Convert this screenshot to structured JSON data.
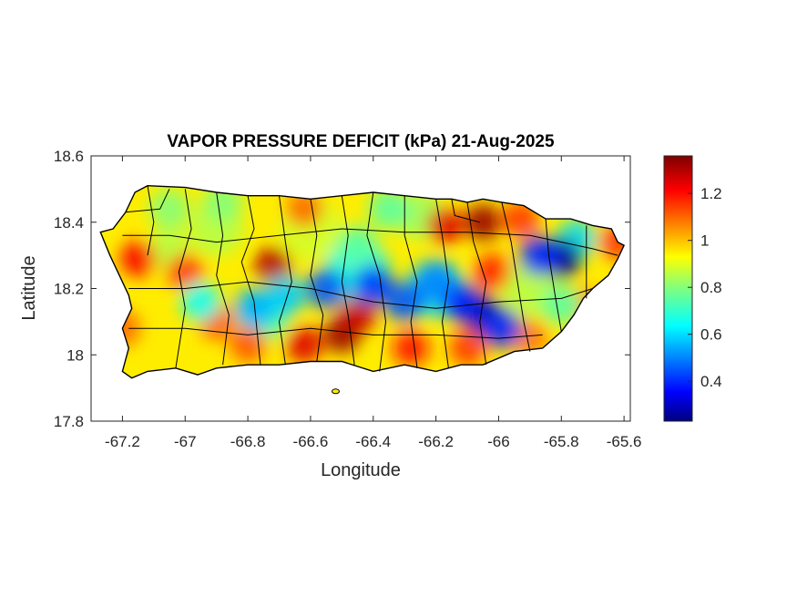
{
  "chart_data": {
    "type": "heatmap",
    "title": "VAPOR PRESSURE DEFICIT (kPa) 21-Aug-2025",
    "xlabel": "Longitude",
    "ylabel": "Latitude",
    "xlim": [
      -67.3,
      -65.58
    ],
    "ylim": [
      17.8,
      18.6
    ],
    "xticks": [
      -67.2,
      -67,
      -66.8,
      -66.6,
      -66.4,
      -66.2,
      -66,
      -65.8,
      -65.6
    ],
    "xtick_labels": [
      "-67.2",
      "-67",
      "-66.8",
      "-66.6",
      "-66.4",
      "-66.2",
      "-66",
      "-65.8",
      "-65.6"
    ],
    "yticks": [
      17.8,
      18,
      18.2,
      18.4,
      18.6
    ],
    "ytick_labels": [
      "17.8",
      "18",
      "18.2",
      "18.4",
      "18.6"
    ],
    "colorbar": {
      "colormap": "jet",
      "range": [
        0.23,
        1.36
      ],
      "ticks": [
        0.4,
        0.6,
        0.8,
        1,
        1.2
      ],
      "tick_labels": [
        "0.4",
        "0.6",
        "0.8",
        "1",
        "1.2"
      ]
    },
    "grid": false,
    "region": "Puerto Rico",
    "base_value": 0.95,
    "hotspots": [
      {
        "lon": -66.05,
        "lat": 18.4,
        "value": 1.33
      },
      {
        "lon": -66.17,
        "lat": 18.39,
        "value": 1.25
      },
      {
        "lon": -65.93,
        "lat": 18.41,
        "value": 1.15
      },
      {
        "lon": -65.62,
        "lat": 18.34,
        "value": 1.15
      },
      {
        "lon": -67.15,
        "lat": 18.29,
        "value": 1.22
      },
      {
        "lon": -67.0,
        "lat": 18.25,
        "value": 1.15
      },
      {
        "lon": -67.2,
        "lat": 18.08,
        "value": 1.1
      },
      {
        "lon": -66.72,
        "lat": 18.27,
        "value": 1.3
      },
      {
        "lon": -66.5,
        "lat": 18.06,
        "value": 1.33
      },
      {
        "lon": -66.45,
        "lat": 18.12,
        "value": 1.28
      },
      {
        "lon": -66.62,
        "lat": 18.03,
        "value": 1.25
      },
      {
        "lon": -66.28,
        "lat": 18.02,
        "value": 1.2
      },
      {
        "lon": -66.1,
        "lat": 18.02,
        "value": 1.15
      },
      {
        "lon": -66.02,
        "lat": 18.25,
        "value": 1.18
      },
      {
        "lon": -66.8,
        "lat": 18.03,
        "value": 1.12
      },
      {
        "lon": -66.9,
        "lat": 18.1,
        "value": 1.12
      },
      {
        "lon": -66.62,
        "lat": 18.44,
        "value": 1.1
      },
      {
        "lon": -65.9,
        "lat": 18.05,
        "value": 1.08
      },
      {
        "lon": -65.72,
        "lat": 18.15,
        "value": 1.05
      }
    ],
    "coldspots": [
      {
        "lon": -65.8,
        "lat": 18.29,
        "value": 0.25
      },
      {
        "lon": -65.87,
        "lat": 18.3,
        "value": 0.4
      },
      {
        "lon": -66.05,
        "lat": 18.12,
        "value": 0.28
      },
      {
        "lon": -66.12,
        "lat": 18.16,
        "value": 0.38
      },
      {
        "lon": -65.99,
        "lat": 18.08,
        "value": 0.4
      },
      {
        "lon": -66.4,
        "lat": 18.21,
        "value": 0.42
      },
      {
        "lon": -66.3,
        "lat": 18.16,
        "value": 0.45
      },
      {
        "lon": -66.55,
        "lat": 18.2,
        "value": 0.45
      },
      {
        "lon": -66.2,
        "lat": 18.22,
        "value": 0.5
      },
      {
        "lon": -66.78,
        "lat": 18.14,
        "value": 0.55
      },
      {
        "lon": -66.95,
        "lat": 18.16,
        "value": 0.65
      },
      {
        "lon": -66.68,
        "lat": 18.18,
        "value": 0.58
      },
      {
        "lon": -66.35,
        "lat": 18.44,
        "value": 0.75
      },
      {
        "lon": -66.88,
        "lat": 18.46,
        "value": 0.8
      },
      {
        "lon": -67.05,
        "lat": 18.44,
        "value": 0.8
      },
      {
        "lon": -65.8,
        "lat": 18.15,
        "value": 0.75
      },
      {
        "lon": -66.45,
        "lat": 18.33,
        "value": 0.75
      }
    ]
  },
  "colors": {
    "background": "#ffffff",
    "axes": "#262626",
    "boundaries": "#000000"
  }
}
